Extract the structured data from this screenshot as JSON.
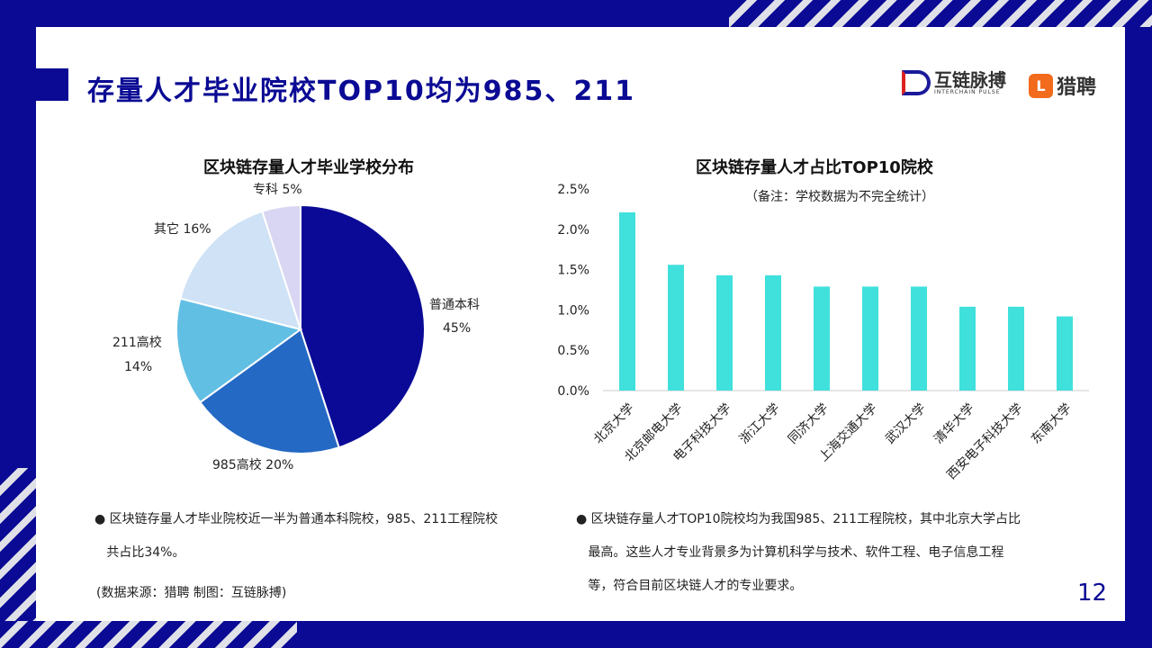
{
  "header": {
    "title": "存量人才毕业院校TOP10均为985、211",
    "logo_name": "互链脉搏",
    "logo_sub": "INTERCHAIN PULSE",
    "partner_logo": "猎聘",
    "partner_mark": "L"
  },
  "chart_data": [
    {
      "type": "pie",
      "title": "区块链存量人才毕业学校分布",
      "categories": [
        "普通本科",
        "985高校",
        "211高校",
        "其它",
        "专科"
      ],
      "values": [
        45,
        20,
        14,
        16,
        5
      ],
      "labels": [
        "普通本科",
        "985高校 20%",
        "211高校",
        "其它 16%",
        "专科 5%"
      ],
      "pct_labels": [
        "45%",
        "14%"
      ],
      "colors": [
        "#0a0a96",
        "#2469c4",
        "#62bfe4",
        "#cfe2f6",
        "#d8d6f2"
      ]
    },
    {
      "type": "bar",
      "title": "区块链存量人才占比TOP10院校",
      "note": "（备注：学校数据为不完全统计）",
      "categories": [
        "北京大学",
        "北京邮电大学",
        "电子科技大学",
        "浙江大学",
        "同济大学",
        "上海交通大学",
        "武汉大学",
        "清华大学",
        "西安电子科技大学",
        "东南大学"
      ],
      "values": [
        2.21,
        1.56,
        1.43,
        1.43,
        1.29,
        1.29,
        1.29,
        1.04,
        1.04,
        0.92
      ],
      "ylim": [
        0,
        2.5
      ],
      "yticks": [
        "0.0%",
        "0.5%",
        "1.0%",
        "1.5%",
        "2.0%",
        "2.5%"
      ],
      "color": "#40e0dc"
    }
  ],
  "bullets": {
    "left": [
      "区块链存量人才毕业院校近一半为普通本科院校，985、211工程院校",
      "共占比34%。"
    ],
    "right": [
      "区块链存量人才TOP10院校均为我国985、211工程院校，其中北京大学占比",
      "最高。这些人才专业背景多为计算机科学与技术、软件工程、电子信息工程",
      "等，符合目前区块链人才的专业要求。"
    ]
  },
  "source": "(数据来源：猎聘   制图：互链脉搏)",
  "page_number": "12"
}
